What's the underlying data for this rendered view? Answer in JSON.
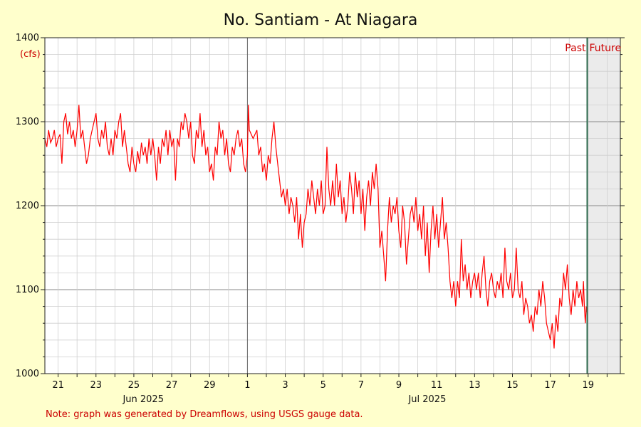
{
  "chart_data": {
    "type": "line",
    "title": "No. Santiam - At Niagara",
    "unit_label": "(cfs)",
    "note": "Note: graph was generated by Dreamflows, using USGS gauge data.",
    "past_label": "Past",
    "future_label": "Future",
    "ylim": [
      1000,
      1400
    ],
    "y_ticks": [
      1000,
      1100,
      1200,
      1300,
      1400
    ],
    "x_range_days": [
      -10.7,
      19.7
    ],
    "now_day": 17.95,
    "x_ticks": [
      {
        "day": -10,
        "label": "21"
      },
      {
        "day": -8,
        "label": "23"
      },
      {
        "day": -6,
        "label": "25"
      },
      {
        "day": -4,
        "label": "27"
      },
      {
        "day": -2,
        "label": "29"
      },
      {
        "day": 0,
        "label": "1"
      },
      {
        "day": 2,
        "label": "3"
      },
      {
        "day": 4,
        "label": "5"
      },
      {
        "day": 6,
        "label": "7"
      },
      {
        "day": 8,
        "label": "9"
      },
      {
        "day": 10,
        "label": "11"
      },
      {
        "day": 12,
        "label": "13"
      },
      {
        "day": 14,
        "label": "15"
      },
      {
        "day": 16,
        "label": "17"
      },
      {
        "day": 18,
        "label": "19"
      }
    ],
    "month_labels": [
      {
        "day": -5.5,
        "label": "Jun 2025"
      },
      {
        "day": 9.5,
        "label": "Jul 2025"
      }
    ],
    "series": [
      {
        "color": "#ff0000",
        "points": [
          [
            -10.7,
            1280
          ],
          [
            -10.6,
            1270
          ],
          [
            -10.5,
            1290
          ],
          [
            -10.4,
            1275
          ],
          [
            -10.3,
            1280
          ],
          [
            -10.2,
            1290
          ],
          [
            -10.1,
            1270
          ],
          [
            -10.0,
            1280
          ],
          [
            -9.9,
            1285
          ],
          [
            -9.8,
            1250
          ],
          [
            -9.7,
            1300
          ],
          [
            -9.6,
            1310
          ],
          [
            -9.5,
            1285
          ],
          [
            -9.4,
            1300
          ],
          [
            -9.3,
            1280
          ],
          [
            -9.2,
            1290
          ],
          [
            -9.1,
            1270
          ],
          [
            -9.0,
            1290
          ],
          [
            -8.9,
            1320
          ],
          [
            -8.8,
            1280
          ],
          [
            -8.7,
            1290
          ],
          [
            -8.6,
            1270
          ],
          [
            -8.5,
            1250
          ],
          [
            -8.4,
            1260
          ],
          [
            -8.3,
            1280
          ],
          [
            -8.2,
            1290
          ],
          [
            -8.1,
            1300
          ],
          [
            -8.0,
            1310
          ],
          [
            -7.9,
            1280
          ],
          [
            -7.8,
            1270
          ],
          [
            -7.7,
            1290
          ],
          [
            -7.6,
            1280
          ],
          [
            -7.5,
            1300
          ],
          [
            -7.4,
            1270
          ],
          [
            -7.3,
            1260
          ],
          [
            -7.2,
            1280
          ],
          [
            -7.1,
            1260
          ],
          [
            -7.0,
            1290
          ],
          [
            -6.9,
            1280
          ],
          [
            -6.8,
            1300
          ],
          [
            -6.7,
            1310
          ],
          [
            -6.6,
            1270
          ],
          [
            -6.5,
            1290
          ],
          [
            -6.4,
            1270
          ],
          [
            -6.3,
            1250
          ],
          [
            -6.2,
            1240
          ],
          [
            -6.1,
            1270
          ],
          [
            -6.0,
            1250
          ],
          [
            -5.9,
            1240
          ],
          [
            -5.8,
            1265
          ],
          [
            -5.7,
            1250
          ],
          [
            -5.6,
            1275
          ],
          [
            -5.5,
            1260
          ],
          [
            -5.4,
            1270
          ],
          [
            -5.3,
            1250
          ],
          [
            -5.2,
            1280
          ],
          [
            -5.1,
            1260
          ],
          [
            -5.0,
            1280
          ],
          [
            -4.9,
            1260
          ],
          [
            -4.8,
            1230
          ],
          [
            -4.7,
            1270
          ],
          [
            -4.6,
            1250
          ],
          [
            -4.5,
            1280
          ],
          [
            -4.4,
            1270
          ],
          [
            -4.3,
            1290
          ],
          [
            -4.2,
            1260
          ],
          [
            -4.1,
            1290
          ],
          [
            -4.0,
            1270
          ],
          [
            -3.9,
            1280
          ],
          [
            -3.8,
            1230
          ],
          [
            -3.7,
            1280
          ],
          [
            -3.6,
            1270
          ],
          [
            -3.5,
            1300
          ],
          [
            -3.4,
            1290
          ],
          [
            -3.3,
            1310
          ],
          [
            -3.2,
            1300
          ],
          [
            -3.1,
            1280
          ],
          [
            -3.0,
            1300
          ],
          [
            -2.9,
            1260
          ],
          [
            -2.8,
            1250
          ],
          [
            -2.7,
            1290
          ],
          [
            -2.6,
            1280
          ],
          [
            -2.5,
            1310
          ],
          [
            -2.4,
            1270
          ],
          [
            -2.3,
            1290
          ],
          [
            -2.2,
            1260
          ],
          [
            -2.1,
            1270
          ],
          [
            -2.0,
            1240
          ],
          [
            -1.9,
            1250
          ],
          [
            -1.8,
            1230
          ],
          [
            -1.7,
            1270
          ],
          [
            -1.6,
            1260
          ],
          [
            -1.5,
            1300
          ],
          [
            -1.4,
            1280
          ],
          [
            -1.3,
            1290
          ],
          [
            -1.2,
            1260
          ],
          [
            -1.1,
            1280
          ],
          [
            -1.0,
            1250
          ],
          [
            -0.9,
            1240
          ],
          [
            -0.8,
            1270
          ],
          [
            -0.7,
            1260
          ],
          [
            -0.6,
            1280
          ],
          [
            -0.5,
            1290
          ],
          [
            -0.4,
            1270
          ],
          [
            -0.3,
            1280
          ],
          [
            -0.2,
            1250
          ],
          [
            -0.1,
            1240
          ],
          [
            0.0,
            1260
          ],
          [
            0.05,
            1320
          ],
          [
            0.1,
            1290
          ],
          [
            0.3,
            1280
          ],
          [
            0.5,
            1290
          ],
          [
            0.6,
            1260
          ],
          [
            0.7,
            1270
          ],
          [
            0.8,
            1240
          ],
          [
            0.9,
            1250
          ],
          [
            1.0,
            1230
          ],
          [
            1.1,
            1260
          ],
          [
            1.2,
            1250
          ],
          [
            1.3,
            1280
          ],
          [
            1.4,
            1300
          ],
          [
            1.5,
            1270
          ],
          [
            1.6,
            1250
          ],
          [
            1.7,
            1230
          ],
          [
            1.8,
            1210
          ],
          [
            1.9,
            1220
          ],
          [
            2.0,
            1200
          ],
          [
            2.1,
            1220
          ],
          [
            2.2,
            1190
          ],
          [
            2.3,
            1210
          ],
          [
            2.4,
            1200
          ],
          [
            2.5,
            1180
          ],
          [
            2.6,
            1210
          ],
          [
            2.7,
            1160
          ],
          [
            2.8,
            1190
          ],
          [
            2.9,
            1150
          ],
          [
            3.0,
            1180
          ],
          [
            3.1,
            1190
          ],
          [
            3.2,
            1220
          ],
          [
            3.3,
            1200
          ],
          [
            3.4,
            1230
          ],
          [
            3.5,
            1210
          ],
          [
            3.6,
            1190
          ],
          [
            3.7,
            1220
          ],
          [
            3.8,
            1200
          ],
          [
            3.9,
            1230
          ],
          [
            4.0,
            1190
          ],
          [
            4.1,
            1200
          ],
          [
            4.2,
            1270
          ],
          [
            4.3,
            1220
          ],
          [
            4.4,
            1200
          ],
          [
            4.5,
            1230
          ],
          [
            4.6,
            1200
          ],
          [
            4.7,
            1250
          ],
          [
            4.8,
            1210
          ],
          [
            4.9,
            1230
          ],
          [
            5.0,
            1190
          ],
          [
            5.1,
            1210
          ],
          [
            5.2,
            1180
          ],
          [
            5.3,
            1200
          ],
          [
            5.4,
            1240
          ],
          [
            5.5,
            1220
          ],
          [
            5.6,
            1190
          ],
          [
            5.7,
            1240
          ],
          [
            5.8,
            1210
          ],
          [
            5.9,
            1230
          ],
          [
            6.0,
            1190
          ],
          [
            6.1,
            1220
          ],
          [
            6.2,
            1170
          ],
          [
            6.3,
            1210
          ],
          [
            6.4,
            1230
          ],
          [
            6.5,
            1200
          ],
          [
            6.6,
            1240
          ],
          [
            6.7,
            1220
          ],
          [
            6.8,
            1250
          ],
          [
            6.9,
            1220
          ],
          [
            7.0,
            1150
          ],
          [
            7.1,
            1170
          ],
          [
            7.2,
            1140
          ],
          [
            7.3,
            1110
          ],
          [
            7.4,
            1170
          ],
          [
            7.5,
            1210
          ],
          [
            7.6,
            1180
          ],
          [
            7.7,
            1200
          ],
          [
            7.8,
            1190
          ],
          [
            7.9,
            1210
          ],
          [
            8.0,
            1170
          ],
          [
            8.1,
            1150
          ],
          [
            8.2,
            1200
          ],
          [
            8.3,
            1180
          ],
          [
            8.4,
            1130
          ],
          [
            8.5,
            1160
          ],
          [
            8.6,
            1190
          ],
          [
            8.7,
            1200
          ],
          [
            8.8,
            1180
          ],
          [
            8.9,
            1210
          ],
          [
            9.0,
            1170
          ],
          [
            9.1,
            1190
          ],
          [
            9.2,
            1160
          ],
          [
            9.3,
            1200
          ],
          [
            9.4,
            1140
          ],
          [
            9.5,
            1180
          ],
          [
            9.6,
            1120
          ],
          [
            9.7,
            1170
          ],
          [
            9.8,
            1200
          ],
          [
            9.9,
            1160
          ],
          [
            10.0,
            1190
          ],
          [
            10.1,
            1150
          ],
          [
            10.2,
            1180
          ],
          [
            10.3,
            1210
          ],
          [
            10.4,
            1160
          ],
          [
            10.5,
            1180
          ],
          [
            10.6,
            1150
          ],
          [
            10.7,
            1110
          ],
          [
            10.8,
            1090
          ],
          [
            10.9,
            1110
          ],
          [
            11.0,
            1080
          ],
          [
            11.1,
            1110
          ],
          [
            11.2,
            1090
          ],
          [
            11.3,
            1160
          ],
          [
            11.4,
            1110
          ],
          [
            11.5,
            1130
          ],
          [
            11.6,
            1100
          ],
          [
            11.7,
            1120
          ],
          [
            11.8,
            1090
          ],
          [
            11.9,
            1110
          ],
          [
            12.0,
            1120
          ],
          [
            12.1,
            1100
          ],
          [
            12.2,
            1120
          ],
          [
            12.3,
            1090
          ],
          [
            12.4,
            1120
          ],
          [
            12.5,
            1140
          ],
          [
            12.6,
            1100
          ],
          [
            12.7,
            1080
          ],
          [
            12.8,
            1110
          ],
          [
            12.9,
            1120
          ],
          [
            13.0,
            1100
          ],
          [
            13.1,
            1090
          ],
          [
            13.2,
            1110
          ],
          [
            13.3,
            1100
          ],
          [
            13.4,
            1120
          ],
          [
            13.5,
            1090
          ],
          [
            13.6,
            1150
          ],
          [
            13.7,
            1110
          ],
          [
            13.8,
            1100
          ],
          [
            13.9,
            1120
          ],
          [
            14.0,
            1090
          ],
          [
            14.1,
            1100
          ],
          [
            14.2,
            1150
          ],
          [
            14.3,
            1100
          ],
          [
            14.4,
            1090
          ],
          [
            14.5,
            1110
          ],
          [
            14.6,
            1070
          ],
          [
            14.7,
            1090
          ],
          [
            14.8,
            1080
          ],
          [
            14.9,
            1060
          ],
          [
            15.0,
            1070
          ],
          [
            15.1,
            1050
          ],
          [
            15.2,
            1080
          ],
          [
            15.3,
            1070
          ],
          [
            15.4,
            1100
          ],
          [
            15.5,
            1080
          ],
          [
            15.6,
            1110
          ],
          [
            15.7,
            1090
          ],
          [
            15.8,
            1060
          ],
          [
            15.9,
            1050
          ],
          [
            16.0,
            1040
          ],
          [
            16.1,
            1060
          ],
          [
            16.2,
            1030
          ],
          [
            16.3,
            1070
          ],
          [
            16.4,
            1050
          ],
          [
            16.5,
            1090
          ],
          [
            16.6,
            1080
          ],
          [
            16.7,
            1120
          ],
          [
            16.8,
            1100
          ],
          [
            16.9,
            1130
          ],
          [
            17.0,
            1090
          ],
          [
            17.1,
            1070
          ],
          [
            17.2,
            1100
          ],
          [
            17.3,
            1080
          ],
          [
            17.4,
            1110
          ],
          [
            17.5,
            1090
          ],
          [
            17.6,
            1100
          ],
          [
            17.7,
            1080
          ],
          [
            17.75,
            1110
          ],
          [
            17.8,
            1080
          ],
          [
            17.85,
            1060
          ],
          [
            17.9,
            1080
          ],
          [
            17.95,
            1070
          ]
        ]
      }
    ]
  }
}
